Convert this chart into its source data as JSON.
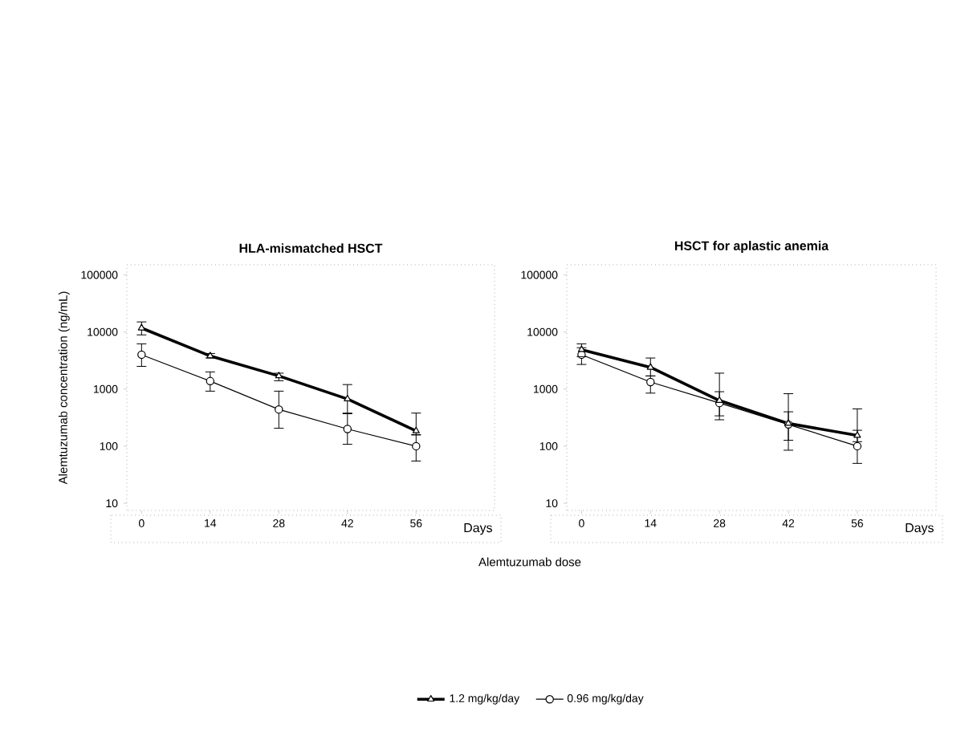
{
  "chart_data": [
    {
      "type": "line",
      "title": "HLA-mismatched HSCT",
      "xlabel": "Days",
      "ylabel": "Alemtuzumab concentration (ng/mL)",
      "x": [
        0,
        14,
        28,
        42,
        56
      ],
      "log": "y",
      "xlim": [
        -3,
        72
      ],
      "xticks": [
        0,
        14,
        28,
        42,
        56
      ],
      "ylim": [
        7.5,
        150000
      ],
      "yticks": [
        10,
        100,
        1000,
        10000,
        100000
      ],
      "grid": false,
      "legend": "bottom",
      "line_style": "solid",
      "annotations": [
        "Alemtuzumab dose"
      ],
      "series": [
        {
          "name": "1.2 mg/kg/day",
          "color": "#000000",
          "marker": "triangle",
          "values": [
            11700,
            3800,
            1700,
            670,
            185
          ],
          "errors": [
            [
              8900,
              15000
            ],
            [
              3500,
              4200
            ],
            [
              1400,
              1900
            ],
            [
              380,
              1200
            ],
            [
              160,
              380
            ]
          ]
        },
        {
          "name": "0.96 mg/kg/day",
          "color": "#000000",
          "marker": "circle",
          "values": [
            4000,
            1380,
            440,
            200,
            100
          ],
          "errors": [
            [
              2500,
              6200
            ],
            [
              920,
              2000
            ],
            [
              206,
              920
            ],
            [
              108,
              370
            ],
            [
              55,
              157
            ]
          ]
        }
      ]
    },
    {
      "type": "line",
      "title": "HSCT for aplastic anemia",
      "xlabel": "Days",
      "x": [
        0,
        14,
        28,
        42,
        56
      ],
      "log": "y",
      "xlim": [
        -3,
        72
      ],
      "xticks": [
        0,
        14,
        28,
        42,
        56
      ],
      "ylim": [
        7.5,
        150000
      ],
      "yticks": [
        10,
        100,
        1000,
        10000,
        100000
      ],
      "grid": false,
      "line_style": "solid",
      "series": [
        {
          "color": "#000000",
          "marker": "triangle",
          "values": [
            4900,
            2400,
            630,
            250,
            154
          ],
          "errors": [
            [
              3700,
              6200
            ],
            [
              1700,
              3500
            ],
            [
              340,
              1900
            ],
            [
              127,
              830
            ],
            [
              120,
              450
            ]
          ]
        },
        {
          "color": "#000000",
          "marker": "circle",
          "values": [
            4000,
            1330,
            570,
            240,
            100
          ],
          "errors": [
            [
              2700,
              5300
            ],
            [
              850,
              1700
            ],
            [
              290,
              900
            ],
            [
              85,
              400
            ],
            [
              50,
              190
            ]
          ]
        }
      ]
    }
  ]
}
